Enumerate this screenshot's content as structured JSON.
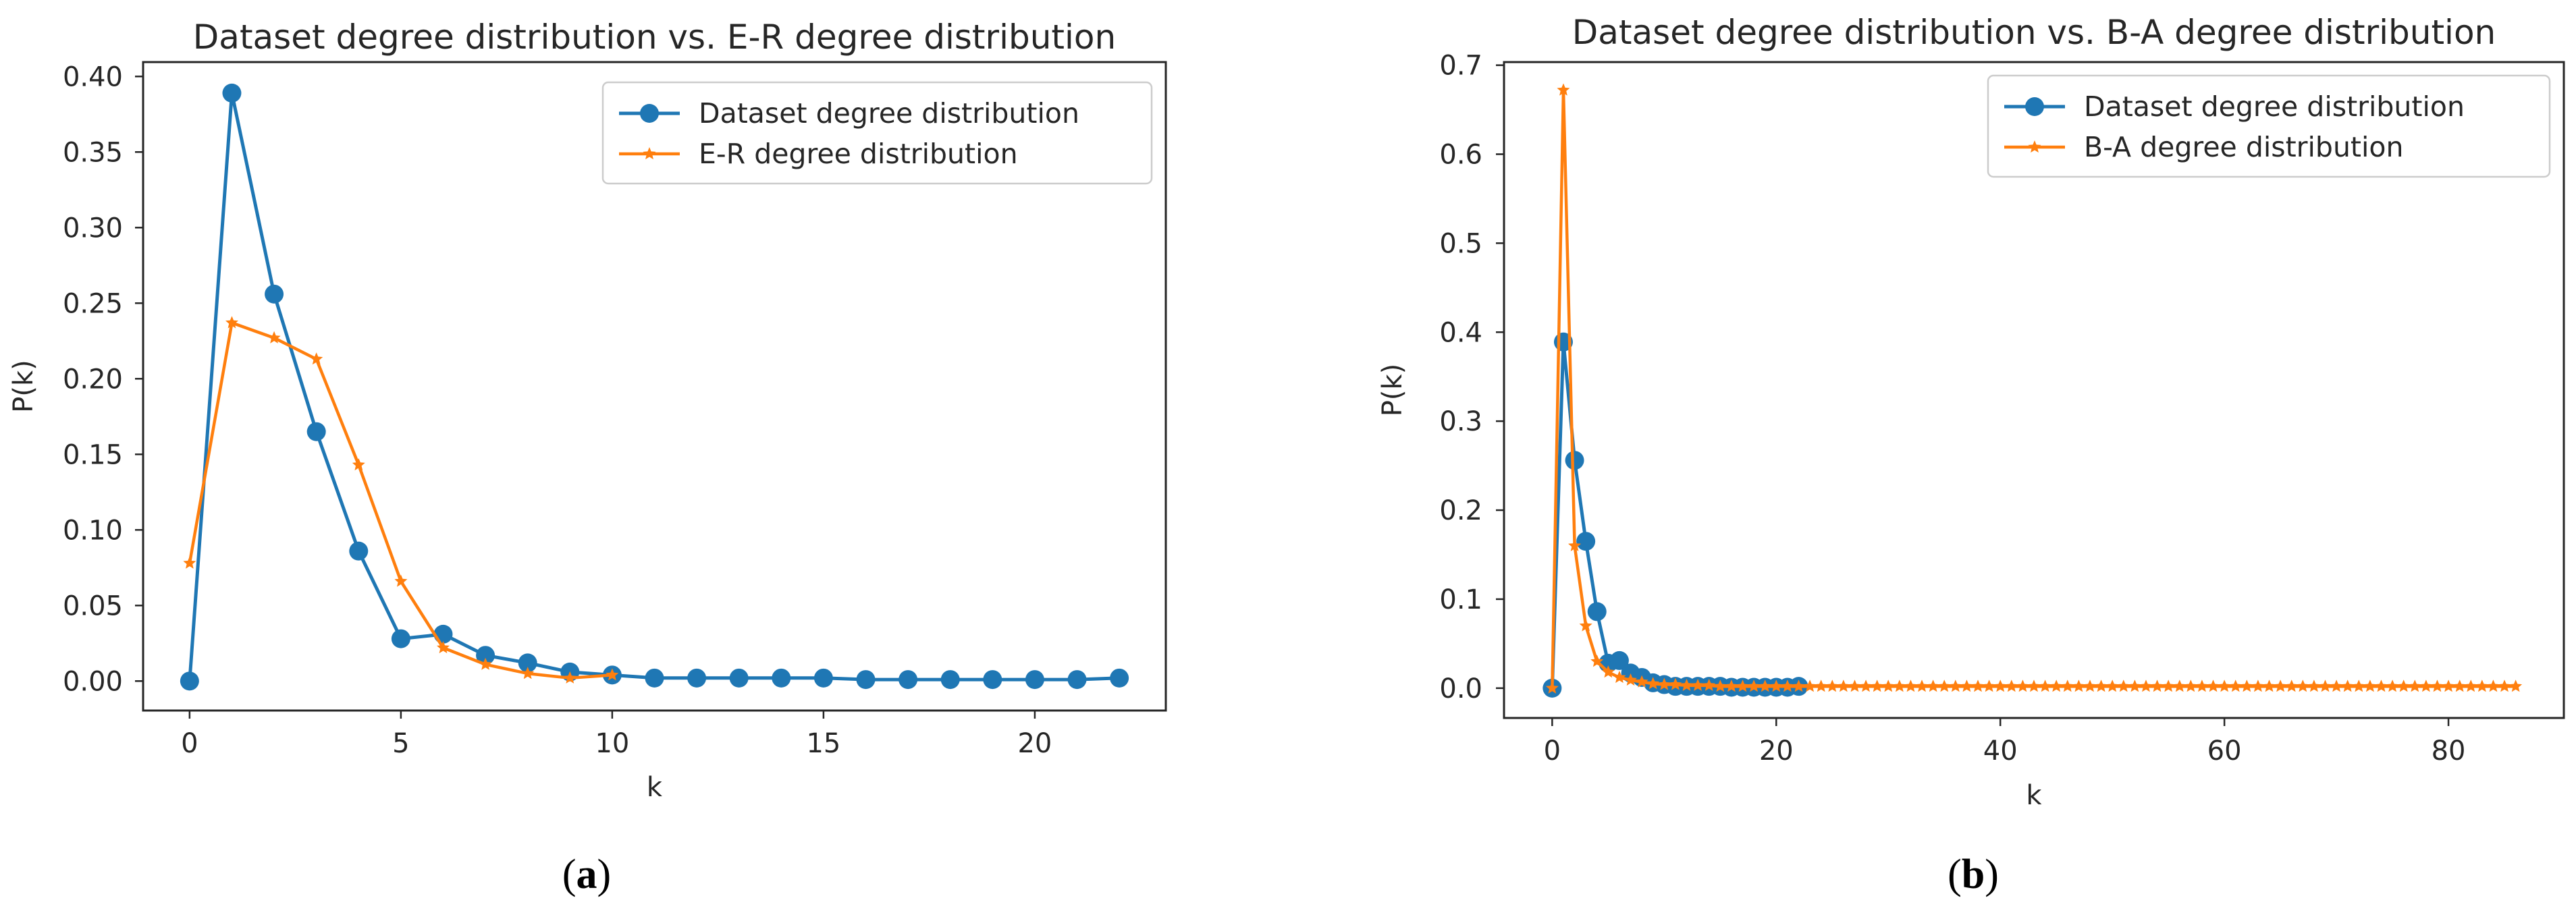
{
  "colors": {
    "series1": "#1f77b4",
    "series2": "#ff7f0e",
    "axis": "#262626",
    "legend_border": "#cccccc"
  },
  "chart_data": [
    {
      "type": "line",
      "title": "Dataset degree distribution vs. E-R degree distribution",
      "xlabel": "k",
      "ylabel": "P(k)",
      "xlim": [
        -1.1,
        23.1
      ],
      "ylim": [
        -0.0195,
        0.4095
      ],
      "xticks": [
        0,
        5,
        10,
        15,
        20
      ],
      "xtick_labels": [
        "0",
        "5",
        "10",
        "15",
        "20"
      ],
      "yticks": [
        0.0,
        0.05,
        0.1,
        0.15,
        0.2,
        0.25,
        0.3,
        0.35,
        0.4
      ],
      "ytick_labels": [
        "0.00",
        "0.05",
        "0.10",
        "0.15",
        "0.20",
        "0.25",
        "0.30",
        "0.35",
        "0.40"
      ],
      "legend_position": "upper right",
      "caption": "a",
      "series": [
        {
          "name": "Dataset degree distribution",
          "marker": "circle",
          "x": [
            0,
            1,
            2,
            3,
            4,
            5,
            6,
            7,
            8,
            9,
            10,
            11,
            12,
            13,
            14,
            15,
            16,
            17,
            18,
            19,
            20,
            21,
            22
          ],
          "y": [
            0.0,
            0.389,
            0.256,
            0.165,
            0.086,
            0.028,
            0.031,
            0.017,
            0.012,
            0.006,
            0.004,
            0.002,
            0.002,
            0.002,
            0.002,
            0.002,
            0.001,
            0.001,
            0.001,
            0.001,
            0.001,
            0.001,
            0.002
          ]
        },
        {
          "name": "E-R degree distribution",
          "marker": "star",
          "x": [
            0,
            1,
            2,
            3,
            4,
            5,
            6,
            7,
            8,
            9,
            10
          ],
          "y": [
            0.078,
            0.237,
            0.227,
            0.213,
            0.143,
            0.066,
            0.022,
            0.011,
            0.005,
            0.002,
            0.004
          ]
        }
      ]
    },
    {
      "type": "line",
      "title": "Dataset degree distribution vs. B-A degree distribution",
      "xlabel": "k",
      "ylabel": "P(k)",
      "xlim": [
        -4.3,
        90.3
      ],
      "ylim": [
        -0.0335,
        0.7035
      ],
      "xticks": [
        0,
        20,
        40,
        60,
        80
      ],
      "xtick_labels": [
        "0",
        "20",
        "40",
        "60",
        "80"
      ],
      "yticks": [
        0.0,
        0.1,
        0.2,
        0.3,
        0.4,
        0.5,
        0.6,
        0.7
      ],
      "ytick_labels": [
        "0.0",
        "0.1",
        "0.2",
        "0.3",
        "0.4",
        "0.5",
        "0.6",
        "0.7"
      ],
      "legend_position": "upper right",
      "caption": "b",
      "series": [
        {
          "name": "Dataset degree distribution",
          "marker": "circle",
          "x": [
            0,
            1,
            2,
            3,
            4,
            5,
            6,
            7,
            8,
            9,
            10,
            11,
            12,
            13,
            14,
            15,
            16,
            17,
            18,
            19,
            20,
            21,
            22
          ],
          "y": [
            0.0,
            0.389,
            0.256,
            0.165,
            0.086,
            0.028,
            0.031,
            0.017,
            0.012,
            0.006,
            0.004,
            0.002,
            0.002,
            0.002,
            0.002,
            0.002,
            0.001,
            0.001,
            0.001,
            0.001,
            0.001,
            0.001,
            0.002
          ]
        },
        {
          "name": "B-A degree distribution",
          "marker": "star",
          "x": [
            0,
            1,
            2,
            3,
            4,
            5,
            6,
            7,
            8,
            9,
            10,
            11,
            12,
            13,
            14,
            15,
            16,
            17,
            18,
            19,
            20,
            21,
            22,
            23,
            24,
            25,
            26,
            27,
            28,
            29,
            30,
            31,
            32,
            33,
            34,
            35,
            36,
            37,
            38,
            39,
            40,
            41,
            42,
            43,
            44,
            45,
            46,
            47,
            48,
            49,
            50,
            51,
            52,
            53,
            54,
            55,
            56,
            57,
            58,
            59,
            60,
            61,
            62,
            63,
            64,
            65,
            66,
            67,
            68,
            69,
            70,
            71,
            72,
            73,
            74,
            75,
            76,
            77,
            78,
            79,
            80,
            81,
            82,
            83,
            84,
            85,
            86
          ],
          "y": [
            0.0,
            0.672,
            0.16,
            0.07,
            0.03,
            0.018,
            0.012,
            0.009,
            0.007,
            0.005,
            0.004,
            0.004,
            0.003,
            0.003,
            0.003,
            0.002,
            0.002,
            0.002,
            0.002,
            0.002,
            0.002,
            0.002,
            0.002,
            0.002,
            0.002,
            0.002,
            0.002,
            0.002,
            0.002,
            0.002,
            0.002,
            0.002,
            0.002,
            0.002,
            0.002,
            0.002,
            0.002,
            0.002,
            0.002,
            0.002,
            0.002,
            0.002,
            0.002,
            0.002,
            0.002,
            0.002,
            0.002,
            0.002,
            0.002,
            0.002,
            0.002,
            0.002,
            0.002,
            0.002,
            0.002,
            0.002,
            0.002,
            0.002,
            0.002,
            0.002,
            0.002,
            0.002,
            0.002,
            0.002,
            0.002,
            0.002,
            0.002,
            0.002,
            0.002,
            0.002,
            0.002,
            0.002,
            0.002,
            0.002,
            0.002,
            0.002,
            0.002,
            0.002,
            0.002,
            0.002,
            0.002,
            0.002,
            0.002,
            0.002,
            0.002,
            0.002,
            0.002
          ]
        }
      ]
    }
  ]
}
